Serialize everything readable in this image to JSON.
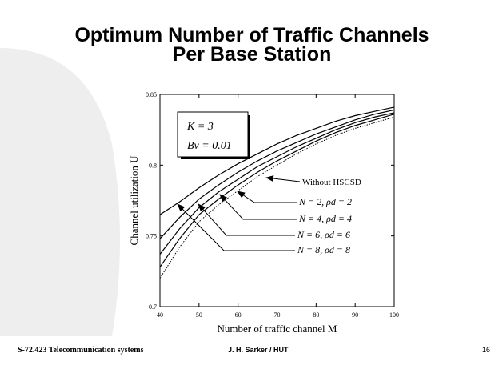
{
  "slide": {
    "title_line1": "Optimum Number of Traffic Channels",
    "title_line2": "Per Base Station",
    "footer_left": "S-72.423 Telecommunication systems",
    "footer_center": "J. H. Sarker / HUT",
    "footer_page": "16"
  },
  "chart_data": {
    "type": "line",
    "xlabel": "Number of traffic channel M",
    "ylabel": "Channel utilization U",
    "annotations": [
      "K = 3",
      "Bv = 0.01"
    ],
    "x": [
      40,
      45,
      50,
      55,
      60,
      65,
      70,
      75,
      80,
      85,
      90,
      95,
      100
    ],
    "xlim": [
      40,
      100
    ],
    "xticks": [
      40,
      50,
      60,
      70,
      80,
      90,
      100
    ],
    "ylim": [
      0.7,
      0.85
    ],
    "yticks": [
      0.7,
      0.75,
      0.8,
      0.85
    ],
    "series": [
      {
        "name": "Without HSCSD",
        "color": "#000000",
        "dash": "dotted",
        "values": [
          0.72,
          0.742,
          0.76,
          0.772,
          0.782,
          0.792,
          0.8,
          0.808,
          0.815,
          0.821,
          0.826,
          0.83,
          0.834
        ]
      },
      {
        "name": "N = 2, ρd = 2",
        "color": "#000000",
        "values": [
          0.728,
          0.748,
          0.765,
          0.776,
          0.786,
          0.795,
          0.803,
          0.81,
          0.817,
          0.823,
          0.828,
          0.832,
          0.836
        ]
      },
      {
        "name": "N = 4, ρd = 4",
        "color": "#000000",
        "values": [
          0.737,
          0.755,
          0.77,
          0.781,
          0.79,
          0.799,
          0.806,
          0.813,
          0.819,
          0.825,
          0.83,
          0.834,
          0.837
        ]
      },
      {
        "name": "N = 6, ρd = 6",
        "color": "#000000",
        "values": [
          0.748,
          0.763,
          0.776,
          0.786,
          0.795,
          0.803,
          0.81,
          0.816,
          0.822,
          0.827,
          0.832,
          0.836,
          0.839
        ]
      },
      {
        "name": "N = 8, ρd = 8",
        "color": "#000000",
        "values": [
          0.765,
          0.774,
          0.784,
          0.793,
          0.801,
          0.808,
          0.815,
          0.821,
          0.826,
          0.831,
          0.835,
          0.838,
          0.841
        ]
      }
    ]
  }
}
